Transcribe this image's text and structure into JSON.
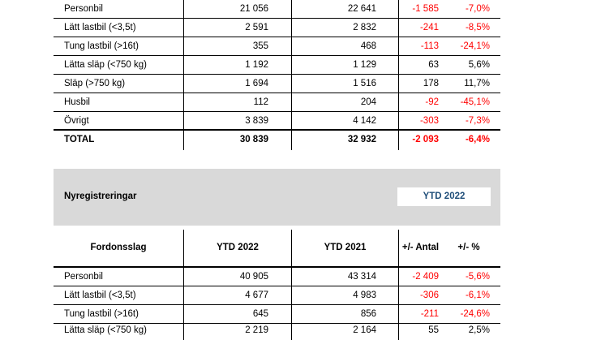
{
  "table1": {
    "rows": [
      {
        "label": "Personbil",
        "a": "21 056",
        "b": "22 641",
        "diff": "-1 585",
        "pct": "-7,0%",
        "diff_neg": true,
        "pct_neg": true
      },
      {
        "label": "Lätt lastbil (<3,5t)",
        "a": "2 591",
        "b": "2 832",
        "diff": "-241",
        "pct": "-8,5%",
        "diff_neg": true,
        "pct_neg": true
      },
      {
        "label": "Tung lastbil (>16t)",
        "a": "355",
        "b": "468",
        "diff": "-113",
        "pct": "-24,1%",
        "diff_neg": true,
        "pct_neg": true
      },
      {
        "label": "Lätta släp (<750 kg)",
        "a": "1 192",
        "b": "1 129",
        "diff": "63",
        "pct": "5,6%",
        "diff_neg": false,
        "pct_neg": false
      },
      {
        "label": "Släp (>750 kg)",
        "a": "1 694",
        "b": "1 516",
        "diff": "178",
        "pct": "11,7%",
        "diff_neg": false,
        "pct_neg": false
      },
      {
        "label": "Husbil",
        "a": "112",
        "b": "204",
        "diff": "-92",
        "pct": "-45,1%",
        "diff_neg": true,
        "pct_neg": true
      },
      {
        "label": "Övrigt",
        "a": "3 839",
        "b": "4 142",
        "diff": "-303",
        "pct": "-7,3%",
        "diff_neg": true,
        "pct_neg": true
      }
    ],
    "total": {
      "label": "TOTAL",
      "a": "30 839",
      "b": "32 932",
      "diff": "-2 093",
      "pct": "-6,4%"
    }
  },
  "section2": {
    "title": "Nyregistreringar",
    "period_label": "YTD 2022",
    "headers": {
      "col0": "Fordonsslag",
      "col1": "YTD 2022",
      "col2": "YTD 2021",
      "col3": "+/- Antal",
      "col4": "+/- %"
    },
    "rows": [
      {
        "label": "Personbil",
        "a": "40 905",
        "b": "43 314",
        "diff": "-2 409",
        "pct": "-5,6%",
        "diff_neg": true,
        "pct_neg": true
      },
      {
        "label": "Lätt lastbil (<3,5t)",
        "a": "4 677",
        "b": "4 983",
        "diff": "-306",
        "pct": "-6,1%",
        "diff_neg": true,
        "pct_neg": true
      },
      {
        "label": "Tung lastbil (>16t)",
        "a": "645",
        "b": "856",
        "diff": "-211",
        "pct": "-24,6%",
        "diff_neg": true,
        "pct_neg": true
      },
      {
        "label": "Lätta släp (<750 kg)",
        "a": "2 219",
        "b": "2 164",
        "diff": "55",
        "pct": "2,5%",
        "diff_neg": false,
        "pct_neg": false
      }
    ]
  },
  "colors": {
    "negative": "#ff0000",
    "band": "#d9d9d9",
    "period_text": "#1f4e79"
  }
}
